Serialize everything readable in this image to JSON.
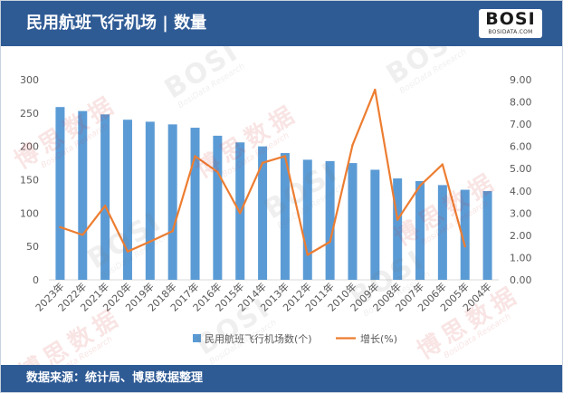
{
  "header": {
    "title": "民用航班飞行机场 | 数量"
  },
  "logo": {
    "mark": "BOSI",
    "site": "BOSIDATA.COM"
  },
  "footer": {
    "source": "数据来源：统计局、博思数据整理"
  },
  "watermark": {
    "mark": "BOSI",
    "cn": "博思数据",
    "en": "BosiData Research"
  },
  "colors": {
    "header": "#2f5b95",
    "bar": "#5b9bd5",
    "line": "#ed7d31",
    "tick_text": "#595959"
  },
  "chart_data": {
    "type": "bar",
    "categories": [
      "2023年",
      "2022年",
      "2021年",
      "2020年",
      "2019年",
      "2018年",
      "2017年",
      "2016年",
      "2015年",
      "2014年",
      "2013年",
      "2012年",
      "2011年",
      "2010年",
      "2009年",
      "2008年",
      "2007年",
      "2006年",
      "2005年",
      "2004年"
    ],
    "series": [
      {
        "name": "民用航班飞行机场数(个)",
        "type": "bar",
        "axis": "left",
        "values": [
          259,
          253,
          248,
          240,
          237,
          233,
          228,
          216,
          206,
          200,
          190,
          180,
          178,
          175,
          165,
          152,
          148,
          142,
          135,
          133
        ]
      },
      {
        "name": "增长(%)",
        "type": "line",
        "axis": "right",
        "values": [
          2.37,
          2.02,
          3.33,
          1.27,
          1.72,
          2.19,
          5.56,
          4.85,
          3.0,
          5.26,
          5.56,
          1.12,
          1.71,
          6.06,
          8.55,
          2.7,
          4.23,
          5.19,
          1.5,
          null
        ]
      }
    ],
    "y_left": {
      "range": [
        0,
        300
      ],
      "tick_labels": [
        "0",
        "50",
        "100",
        "150",
        "200",
        "250",
        "300"
      ]
    },
    "y_right": {
      "range": [
        0,
        9
      ],
      "tick_labels": [
        "0.00",
        "1.00",
        "2.00",
        "3.00",
        "4.00",
        "5.00",
        "6.00",
        "7.00",
        "8.00",
        "9.00"
      ]
    },
    "grid": false,
    "legend": "bottom-center"
  }
}
